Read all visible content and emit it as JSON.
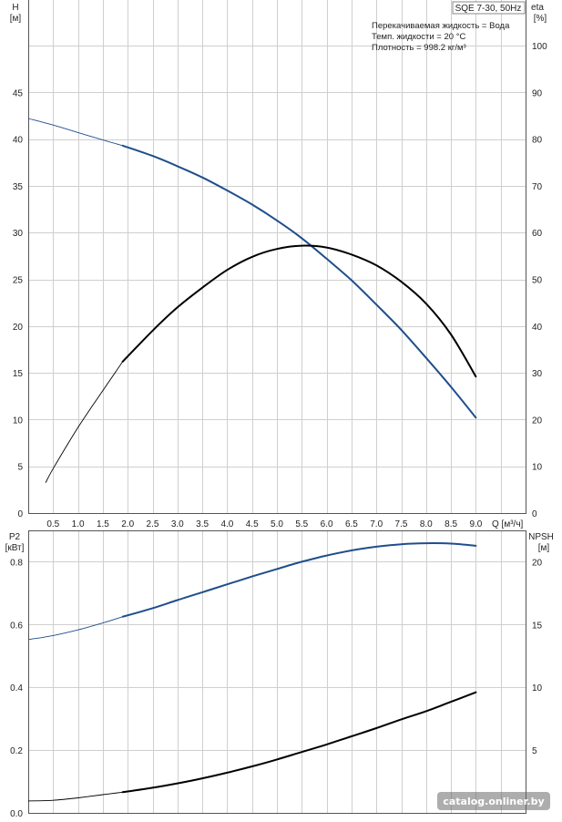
{
  "chart_data": [
    {
      "type": "line",
      "panel": "top",
      "model_label": "SQE 7-30, 50Hz",
      "info_lines": [
        "Перекачиваемая жидкость = Вода",
        "Темп. жидкости = 20 °C",
        "Плотность = 998.2 кг/м³"
      ],
      "xlabel": "Q [м³/ч]",
      "xlim": [
        0,
        10
      ],
      "x_ticks": [
        "0.5",
        "1.0",
        "1.5",
        "2.0",
        "2.5",
        "3.0",
        "3.5",
        "4.0",
        "4.5",
        "5.0",
        "5.5",
        "6.0",
        "6.5",
        "7.0",
        "7.5",
        "8.0",
        "8.5",
        "9.0"
      ],
      "y_left": {
        "label": "H",
        "unit": "[м]",
        "lim": [
          0,
          50
        ],
        "ticks": [
          "0",
          "5",
          "10",
          "15",
          "20",
          "25",
          "30",
          "35",
          "40",
          "45"
        ]
      },
      "y_right": {
        "label": "eta",
        "unit": "[%]",
        "lim": [
          0,
          100
        ],
        "ticks": [
          "0",
          "10",
          "20",
          "30",
          "40",
          "50",
          "60",
          "70",
          "80",
          "90",
          "100"
        ]
      },
      "grid": true,
      "series": [
        {
          "axis": "left",
          "color": "#1f4e8c",
          "x": [
            0,
            0.5,
            1.0,
            1.5,
            1.9,
            2.5,
            3.0,
            3.5,
            4.0,
            4.5,
            5.0,
            5.5,
            6.0,
            6.5,
            7.0,
            7.5,
            8.0,
            8.5,
            9.0
          ],
          "values": [
            42.2,
            41.5,
            40.7,
            39.9,
            39.3,
            38.2,
            37.1,
            35.9,
            34.5,
            33.0,
            31.3,
            29.4,
            27.2,
            24.9,
            22.3,
            19.6,
            16.6,
            13.5,
            10.2
          ],
          "thin_until_x": 1.9
        },
        {
          "axis": "right",
          "color": "#000000",
          "x": [
            0.35,
            0.5,
            1.0,
            1.5,
            1.9,
            2.5,
            3.0,
            3.5,
            4.0,
            4.5,
            5.0,
            5.5,
            6.0,
            6.5,
            7.0,
            7.5,
            8.0,
            8.5,
            9.0
          ],
          "values": [
            6.5,
            9.5,
            18.3,
            26.2,
            32.4,
            39.0,
            44.0,
            48.2,
            52.0,
            54.8,
            56.5,
            57.2,
            56.8,
            55.3,
            53.0,
            49.5,
            44.8,
            38.2,
            29.2
          ],
          "thin_until_x": 1.9
        }
      ]
    },
    {
      "type": "line",
      "panel": "bottom",
      "xlim": [
        0,
        10
      ],
      "y_left": {
        "label": "P2",
        "unit": "[кВт]",
        "lim": [
          0,
          0.9
        ],
        "ticks": [
          "0.0",
          "0.2",
          "0.4",
          "0.6",
          "0.8"
        ]
      },
      "y_right": {
        "label": "NPSH",
        "unit": "[м]",
        "lim": [
          0,
          22.5
        ],
        "ticks": [
          "5",
          "10",
          "15",
          "20"
        ]
      },
      "grid": true,
      "series": [
        {
          "axis": "left",
          "color": "#1f4e8c",
          "x": [
            0,
            0.5,
            1.0,
            1.5,
            1.9,
            2.5,
            3.0,
            3.5,
            4.0,
            4.5,
            5.0,
            5.5,
            6.0,
            6.5,
            7.0,
            7.5,
            8.0,
            8.5,
            9.0
          ],
          "values": [
            0.552,
            0.565,
            0.583,
            0.605,
            0.625,
            0.652,
            0.678,
            0.703,
            0.728,
            0.753,
            0.777,
            0.8,
            0.82,
            0.836,
            0.848,
            0.856,
            0.859,
            0.858,
            0.851
          ],
          "thin_until_x": 1.9
        },
        {
          "axis": "right",
          "color": "#000000",
          "x": [
            0,
            0.5,
            1.0,
            1.5,
            1.9,
            2.5,
            3.0,
            3.5,
            4.0,
            4.5,
            5.0,
            5.5,
            6.0,
            6.5,
            7.0,
            7.5,
            8.0,
            8.5,
            9.0
          ],
          "values": [
            0.95,
            1.0,
            1.2,
            1.45,
            1.65,
            2.0,
            2.35,
            2.75,
            3.2,
            3.7,
            4.25,
            4.85,
            5.45,
            6.1,
            6.75,
            7.45,
            8.1,
            8.85,
            9.6
          ],
          "thin_until_x": 1.9
        }
      ]
    }
  ],
  "watermark": "catalog.onliner.by"
}
